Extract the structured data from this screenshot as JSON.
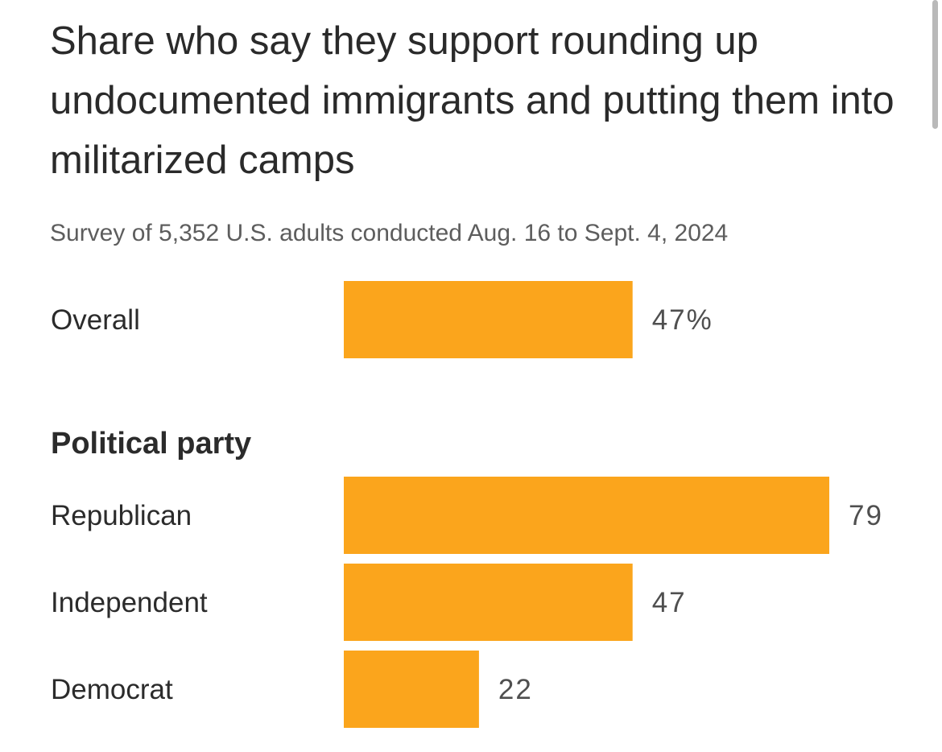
{
  "chart_data": {
    "type": "bar",
    "orientation": "horizontal",
    "title": "Share who say they support rounding up undocumented immigrants and putting them into militarized camps",
    "subtitle": "Survey of 5,352 U.S. adults conducted Aug. 16 to Sept. 4, 2024",
    "xlim": [
      0,
      100
    ],
    "grid": false,
    "bar_color": "#FBA51C",
    "rows": [
      {
        "label": "Overall",
        "value": 47,
        "value_label": "47%",
        "group": null
      },
      {
        "label": "Republican",
        "value": 79,
        "value_label": "79",
        "group": "Political party"
      },
      {
        "label": "Independent",
        "value": 47,
        "value_label": "47",
        "group": "Political party"
      },
      {
        "label": "Democrat",
        "value": 22,
        "value_label": "22",
        "group": "Political party"
      }
    ],
    "groups": [
      {
        "name": "Political party"
      }
    ]
  }
}
